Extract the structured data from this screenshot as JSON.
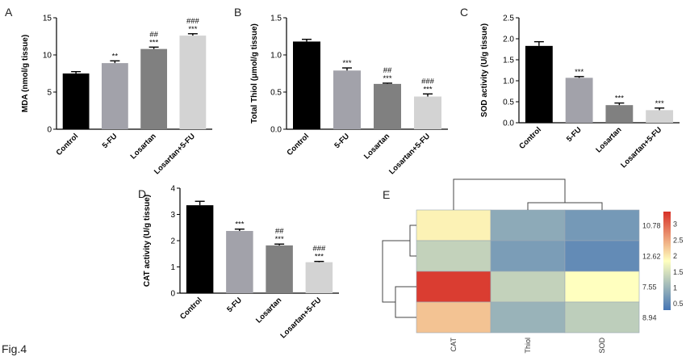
{
  "figure": {
    "caption": "Fig.4"
  },
  "chart_data": [
    {
      "panel": "A",
      "type": "bar",
      "ylabel": "MDA (nmol/g tissue)",
      "ylim": [
        0,
        15
      ],
      "yticks": [
        0,
        5,
        10,
        15
      ],
      "categories": [
        "Control",
        "5-FU",
        "Losartan",
        "Losartan+5-FU"
      ],
      "values": [
        7.5,
        8.9,
        10.8,
        12.6
      ],
      "errors": [
        0.25,
        0.3,
        0.25,
        0.25
      ],
      "colors": [
        "#000000",
        "#a2a2aa",
        "#808080",
        "#d3d3d3"
      ],
      "significance": [
        [],
        [
          "**"
        ],
        [
          "##",
          "***"
        ],
        [
          "###",
          "***"
        ]
      ]
    },
    {
      "panel": "B",
      "type": "bar",
      "ylabel": "Total Thiol (μmol/g tissue)",
      "ylim": [
        0,
        1.5
      ],
      "yticks": [
        0.0,
        0.5,
        1.0,
        1.5
      ],
      "categories": [
        "Control",
        "5-FU",
        "Losartan",
        "Losartan+5-FU"
      ],
      "values": [
        1.18,
        0.79,
        0.61,
        0.44
      ],
      "errors": [
        0.03,
        0.035,
        0.01,
        0.035
      ],
      "colors": [
        "#000000",
        "#a2a2aa",
        "#808080",
        "#d3d3d3"
      ],
      "significance": [
        [],
        [
          "***"
        ],
        [
          "##",
          "***"
        ],
        [
          "###",
          "***"
        ]
      ]
    },
    {
      "panel": "C",
      "type": "bar",
      "ylabel": "SOD activity (U/g tissue)",
      "ylim": [
        0,
        2.5
      ],
      "yticks": [
        0.0,
        0.5,
        1.0,
        1.5,
        2.0,
        2.5
      ],
      "categories": [
        "Control",
        "5-FU",
        "Losartan",
        "Losartan+5-FU"
      ],
      "values": [
        1.83,
        1.07,
        0.42,
        0.3
      ],
      "errors": [
        0.1,
        0.03,
        0.05,
        0.05
      ],
      "colors": [
        "#000000",
        "#a2a2aa",
        "#808080",
        "#d3d3d3"
      ],
      "significance": [
        [],
        [
          "***"
        ],
        [
          "***"
        ],
        [
          "***"
        ]
      ]
    },
    {
      "panel": "D",
      "type": "bar",
      "ylabel": "CAT activity (U/g tissue)",
      "ylim": [
        0,
        4
      ],
      "yticks": [
        0,
        1,
        2,
        3,
        4
      ],
      "categories": [
        "Control",
        "5-FU",
        "Losartan",
        "Losartan+5-FU"
      ],
      "values": [
        3.35,
        2.37,
        1.82,
        1.18
      ],
      "errors": [
        0.15,
        0.07,
        0.05,
        0.03
      ],
      "colors": [
        "#000000",
        "#a2a2aa",
        "#808080",
        "#d3d3d3"
      ],
      "significance": [
        [],
        [
          "***"
        ],
        [
          "##",
          "***"
        ],
        [
          "###",
          "***"
        ]
      ]
    },
    {
      "panel": "E",
      "type": "heatmap",
      "columns": [
        "CAT",
        "Thiol",
        "SOD"
      ],
      "rows": [
        "10.78",
        "12.62",
        "7.55",
        "8.94"
      ],
      "values": [
        [
          1.95,
          0.9,
          0.7
        ],
        [
          1.35,
          0.75,
          0.55
        ],
        [
          3.3,
          1.35,
          1.85
        ],
        [
          2.3,
          1.0,
          1.3
        ]
      ],
      "colorbar": {
        "min": 0.3,
        "max": 3.4,
        "ticks": [
          0.5,
          1,
          1.5,
          2,
          2.5,
          3
        ]
      },
      "colors": {
        "low": "#4575b4",
        "mid": "#ffffbf",
        "high": "#d73027"
      }
    }
  ]
}
